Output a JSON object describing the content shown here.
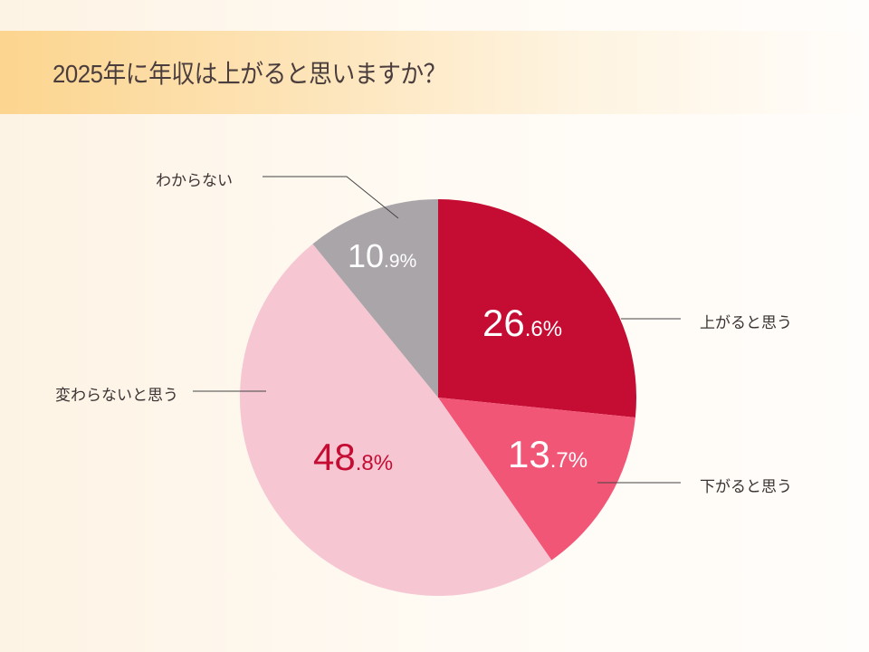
{
  "title": "2025年に年収は上がると思いますか？",
  "chart_data": {
    "type": "pie",
    "title": "2025年に年収は上がると思いますか？",
    "start": "top",
    "direction": "clockwise",
    "slices": [
      {
        "label": "上がると思う",
        "value": 26.6,
        "int": "26",
        "dec": ".6",
        "unit": "%",
        "color": "#c50d33",
        "text_color": "#ffffff"
      },
      {
        "label": "下がると思う",
        "value": 13.7,
        "int": "13",
        "dec": ".7",
        "unit": "%",
        "color": "#f25677",
        "text_color": "#ffffff"
      },
      {
        "label": "変わらないと思う",
        "value": 48.8,
        "int": "48",
        "dec": ".8",
        "unit": "%",
        "color": "#f6c6d3",
        "text_color": "#c50d33"
      },
      {
        "label": "わからない",
        "value": 10.9,
        "int": "10",
        "dec": ".9",
        "unit": "%",
        "color": "#aaa5a9",
        "text_color": "#ffffff"
      }
    ]
  }
}
